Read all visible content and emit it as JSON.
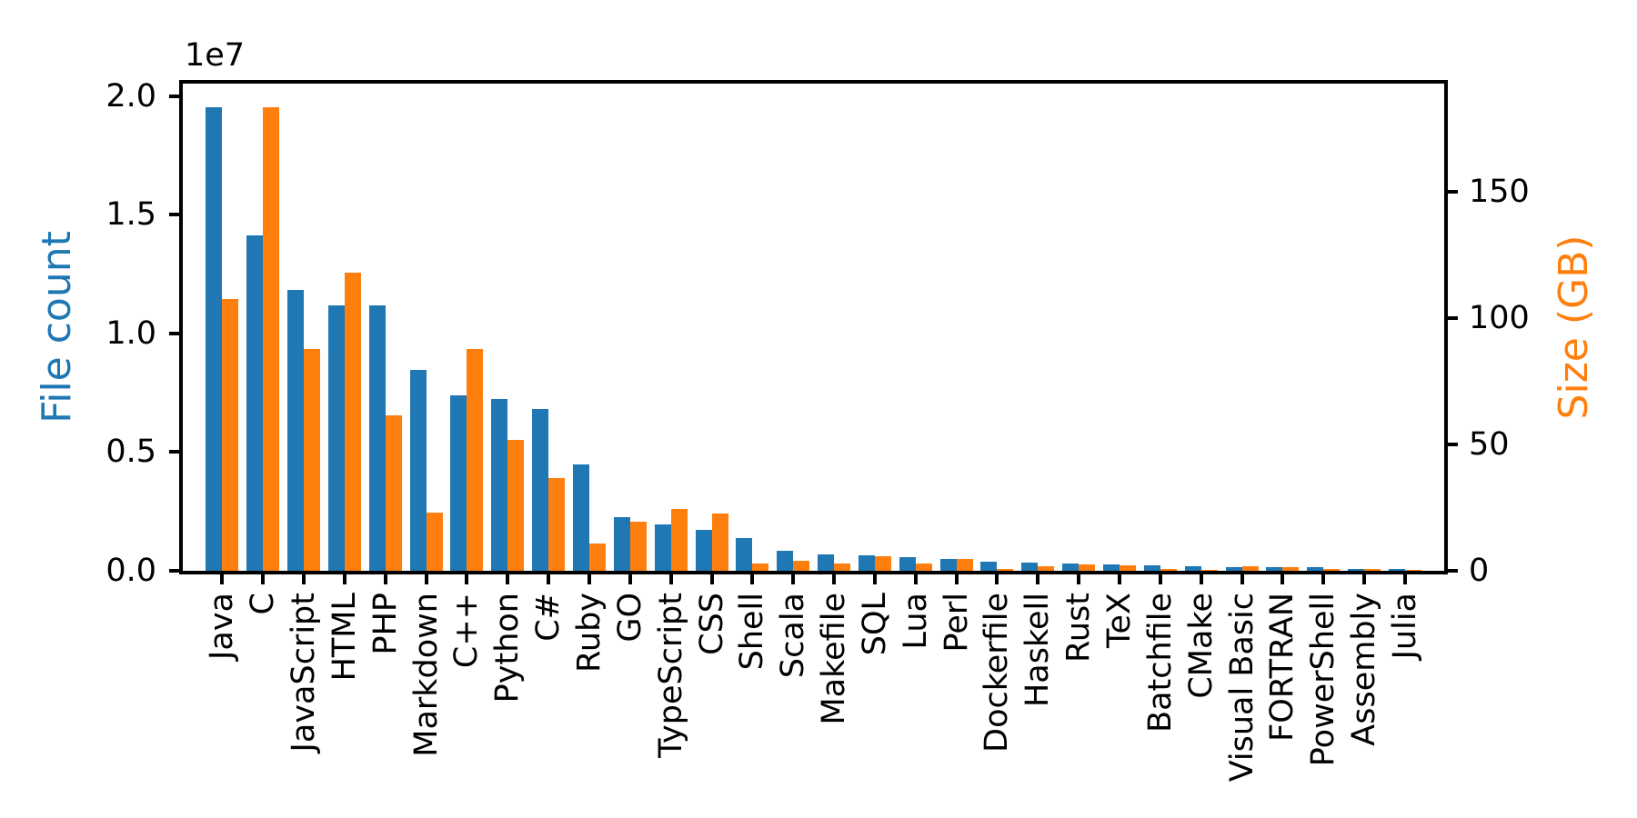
{
  "chart_data": {
    "type": "bar",
    "title": "",
    "categories": [
      "Java",
      "C",
      "JavaScript",
      "HTML",
      "PHP",
      "Markdown",
      "C++",
      "Python",
      "C#",
      "Ruby",
      "GO",
      "TypeScript",
      "CSS",
      "Shell",
      "Scala",
      "Makefile",
      "SQL",
      "Lua",
      "Perl",
      "Dockerfile",
      "Haskell",
      "Rust",
      "TeX",
      "Batchfile",
      "CMake",
      "Visual Basic",
      "FORTRAN",
      "PowerShell",
      "Assembly",
      "Julia"
    ],
    "series": [
      {
        "name": "File count",
        "axis": "left",
        "color": "#1f77b4",
        "values": [
          19548190,
          14143113,
          11839883,
          11178557,
          11177610,
          8464626,
          7380520,
          7226626,
          6811652,
          4473331,
          2265436,
          1940406,
          1734406,
          1385648,
          835755,
          679430,
          656671,
          578554,
          497949,
          366505,
          340623,
          322431,
          251015,
          236945,
          175282,
          155652,
          142038,
          136846,
          82905,
          58317
        ]
      },
      {
        "name": "Size (GB)",
        "axis": "right",
        "color": "#ff7f0e",
        "values": [
          107.7,
          183.83,
          87.82,
          118.12,
          61.41,
          23.09,
          87.73,
          52.03,
          36.83,
          10.95,
          19.28,
          24.59,
          22.67,
          3.01,
          3.87,
          2.92,
          5.67,
          2.81,
          4.7,
          0.71,
          1.85,
          2.68,
          2.15,
          0.7,
          0.54,
          1.91,
          1.62,
          0.69,
          0.78,
          0.29
        ]
      }
    ],
    "left_axis": {
      "label": "File count",
      "color": "#1f77b4",
      "offset_text": "1e7",
      "tick_labels": [
        "0.0",
        "0.5",
        "1.0",
        "1.5",
        "2.0"
      ],
      "tick_values": [
        0,
        5000000,
        10000000,
        15000000,
        20000000
      ],
      "ylim": [
        0,
        20526000
      ]
    },
    "right_axis": {
      "label": "Size (GB)",
      "color": "#ff7f0e",
      "tick_labels": [
        "0",
        "50",
        "100",
        "150"
      ],
      "tick_values": [
        0,
        50,
        100,
        150
      ],
      "ylim": [
        0,
        193.02
      ]
    },
    "grid": false,
    "legend": null,
    "background": "#ffffff",
    "spine_color": "#000000"
  }
}
